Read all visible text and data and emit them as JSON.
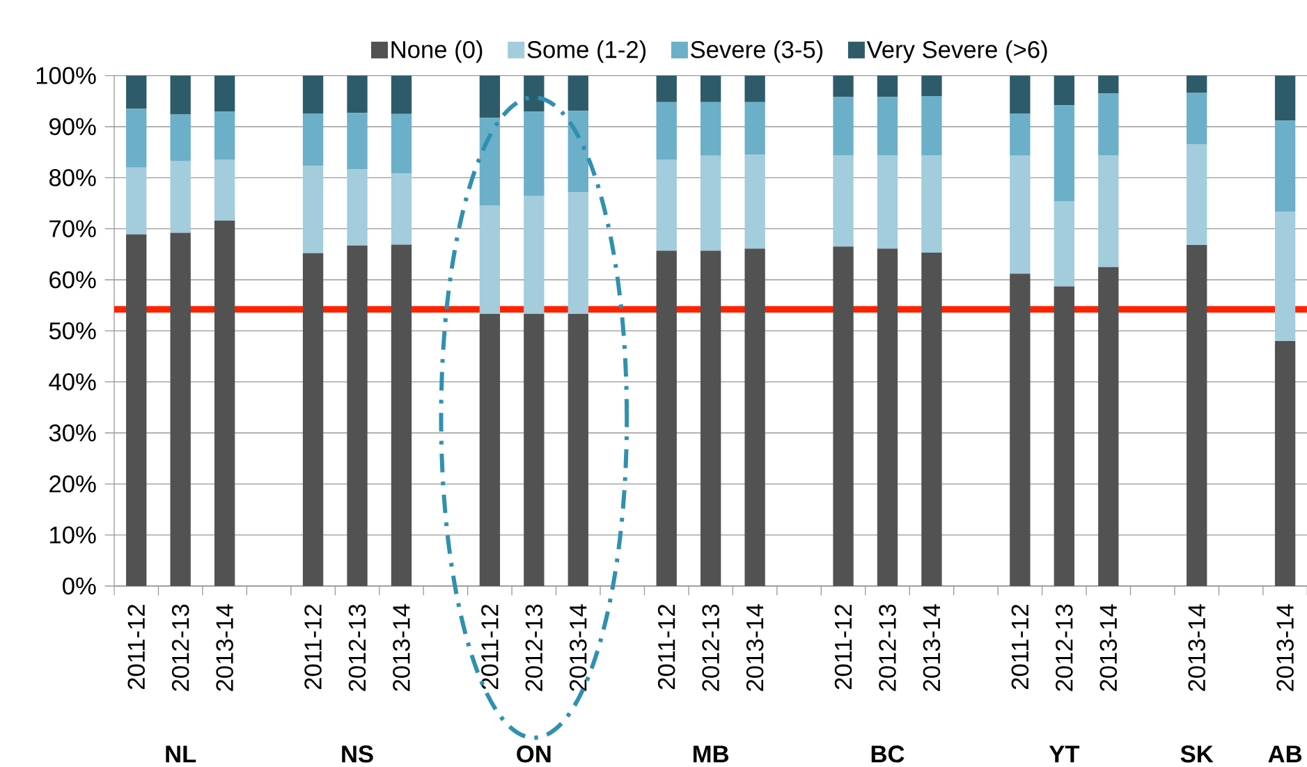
{
  "chart_data": {
    "type": "bar",
    "stacked": true,
    "categories": [
      "2011-12",
      "2012-13",
      "2013-14",
      null,
      "2011-12",
      "2012-13",
      "2013-14",
      null,
      "2011-12",
      "2012-13",
      "2013-14",
      null,
      "2011-12",
      "2012-13",
      "2013-14",
      null,
      "2011-12",
      "2012-13",
      "2013-14",
      null,
      "2011-12",
      "2012-13",
      "2013-14",
      null,
      "2013-14",
      null,
      "2013-14"
    ],
    "series": [
      {
        "name": "None (0)",
        "color": "#525252",
        "values": [
          68.9,
          69.2,
          71.6,
          null,
          65.2,
          66.7,
          66.9,
          null,
          53.3,
          53.3,
          53.3,
          null,
          65.7,
          65.7,
          66.1,
          null,
          66.5,
          66.1,
          65.3,
          null,
          61.2,
          58.7,
          62.5,
          null,
          66.8,
          null,
          48.0
        ]
      },
      {
        "name": "Some (1-2)",
        "color": "#a3ccdc",
        "values": [
          13.1,
          14.1,
          11.9,
          null,
          17.1,
          14.9,
          13.9,
          null,
          21.3,
          23.1,
          23.8,
          null,
          17.8,
          18.6,
          18.4,
          null,
          17.9,
          18.3,
          19.1,
          null,
          23.1,
          16.7,
          21.9,
          null,
          19.8,
          null,
          25.3
        ]
      },
      {
        "name": "Severe (3-5)",
        "color": "#6cafc8",
        "values": [
          11.5,
          9.1,
          9.5,
          null,
          10.3,
          11.1,
          11.7,
          null,
          17.1,
          16.6,
          16.0,
          null,
          11.3,
          10.5,
          10.3,
          null,
          11.4,
          11.4,
          11.6,
          null,
          8.3,
          18.8,
          12.1,
          null,
          10.0,
          null,
          17.9
        ]
      },
      {
        "name": "Very Severe (>6)",
        "color": "#2e5b6a",
        "values": [
          6.5,
          7.6,
          7.0,
          null,
          7.4,
          7.3,
          7.5,
          null,
          8.3,
          7.0,
          6.9,
          null,
          5.2,
          5.2,
          5.2,
          null,
          4.2,
          4.2,
          4.0,
          null,
          7.4,
          5.8,
          3.5,
          null,
          3.4,
          null,
          8.8
        ]
      }
    ],
    "ylim": [
      0,
      100
    ],
    "yticks": [
      {
        "value": 0,
        "label": "0%"
      },
      {
        "value": 10,
        "label": "10%"
      },
      {
        "value": 20,
        "label": "20%"
      },
      {
        "value": 30,
        "label": "30%"
      },
      {
        "value": 40,
        "label": "40%"
      },
      {
        "value": 50,
        "label": "50%"
      },
      {
        "value": 60,
        "label": "60%"
      },
      {
        "value": 70,
        "label": "70%"
      },
      {
        "value": 80,
        "label": "80%"
      },
      {
        "value": 90,
        "label": "90%"
      },
      {
        "value": 100,
        "label": "100%"
      }
    ],
    "grid": "y",
    "legend": "top",
    "ref_lines": [
      {
        "axis": "y",
        "value": 54.2,
        "color": "#ff2200"
      }
    ],
    "annotations": [
      "NL",
      "NS",
      "ON",
      "MB",
      "BC",
      "YT",
      "SK",
      "AB"
    ]
  }
}
